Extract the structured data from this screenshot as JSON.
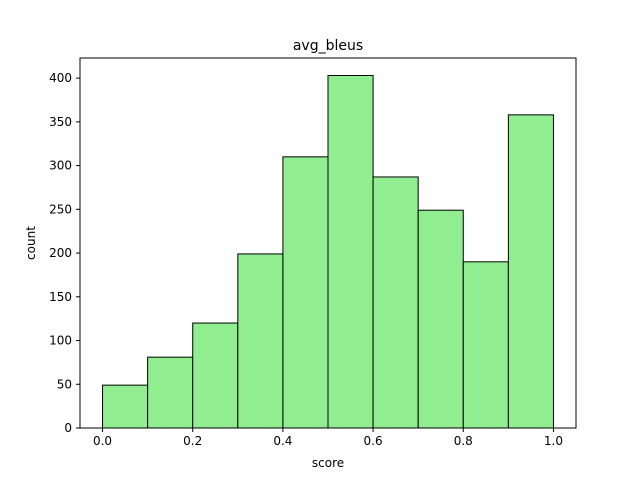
{
  "chart_data": {
    "type": "bar",
    "title": "avg_bleus",
    "xlabel": "score",
    "ylabel": "count",
    "bins": [
      {
        "start": 0.0,
        "end": 0.1,
        "count": 49
      },
      {
        "start": 0.1,
        "end": 0.2,
        "count": 81
      },
      {
        "start": 0.2,
        "end": 0.3,
        "count": 120
      },
      {
        "start": 0.3,
        "end": 0.4,
        "count": 199
      },
      {
        "start": 0.4,
        "end": 0.5,
        "count": 310
      },
      {
        "start": 0.5,
        "end": 0.6,
        "count": 403
      },
      {
        "start": 0.6,
        "end": 0.7,
        "count": 287
      },
      {
        "start": 0.7,
        "end": 0.8,
        "count": 249
      },
      {
        "start": 0.8,
        "end": 0.9,
        "count": 190
      },
      {
        "start": 0.9,
        "end": 1.0,
        "count": 358
      }
    ],
    "xlim": [
      -0.05,
      1.05
    ],
    "ylim": [
      0,
      423
    ],
    "xticks": [
      0.0,
      0.2,
      0.4,
      0.6,
      0.8,
      1.0
    ],
    "xtick_labels": [
      "0.0",
      "0.2",
      "0.4",
      "0.6",
      "0.8",
      "1.0"
    ],
    "yticks": [
      0,
      50,
      100,
      150,
      200,
      250,
      300,
      350,
      400
    ],
    "ytick_labels": [
      "0",
      "50",
      "100",
      "150",
      "200",
      "250",
      "300",
      "350",
      "400"
    ],
    "bar_color": "#90ee90",
    "edge_color": "#000000",
    "grid": false,
    "legend": false
  }
}
